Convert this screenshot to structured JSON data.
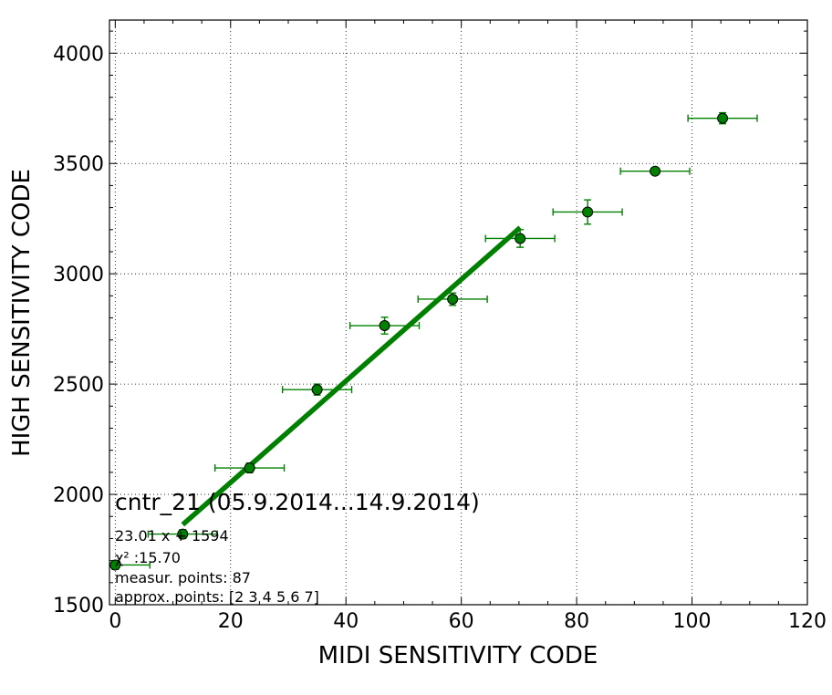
{
  "chart_data": {
    "type": "scatter",
    "xlabel": "MIDI SENSITIVITY CODE",
    "ylabel": "HIGH SENSITIVITY CODE",
    "xlim": [
      -1,
      120
    ],
    "ylim": [
      1500,
      4150
    ],
    "xticks": [
      0,
      20,
      40,
      60,
      80,
      100,
      120
    ],
    "yticks": [
      1500,
      2000,
      2500,
      3000,
      3500,
      4000
    ],
    "xtick_labels": [
      "0",
      "20",
      "40",
      "60",
      "80",
      100,
      120
    ],
    "ytick_labels": [
      "1500",
      "2000",
      "2500",
      "3000",
      "3500",
      "4000"
    ],
    "grid": true,
    "series": [
      {
        "kind": "points_with_errorbars",
        "color": "#008000",
        "x": [
          0,
          11.7,
          23.3,
          35.0,
          46.7,
          58.5,
          70.2,
          81.9,
          93.6,
          105.3
        ],
        "y": [
          1680,
          1820,
          2120,
          2475,
          2765,
          2885,
          3160,
          3280,
          3465,
          3705
        ],
        "xerr": [
          6,
          6,
          6,
          6,
          6,
          6,
          6,
          6,
          6,
          6
        ],
        "yerr": [
          20,
          20,
          22,
          25,
          38,
          28,
          40,
          55,
          15,
          25
        ]
      },
      {
        "kind": "fit_line",
        "color": "#008000",
        "x": [
          11.7,
          70.2
        ],
        "y": [
          1863,
          3209
        ]
      }
    ],
    "annotations": {
      "title": "cntr_21 (05.9.2014...14.9.2014)",
      "equation": "23.01 x + 1594",
      "chi2": "χ² :15.70",
      "measur_points": "measur. points: 87",
      "approx_points": "approx. points: [2 3 4 5 6 7]"
    }
  }
}
